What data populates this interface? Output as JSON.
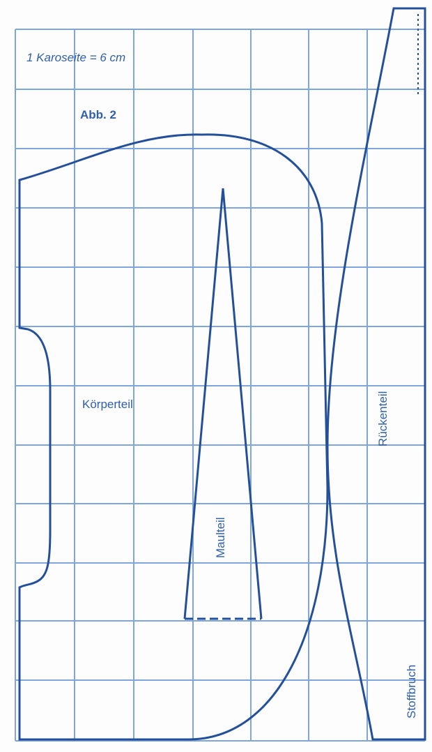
{
  "header": {
    "scale_note": "1 Karoseite = 6 cm",
    "figure_label": "Abb. 2"
  },
  "pieces": [
    {
      "label": "Körperteil"
    },
    {
      "label": "Maulteil"
    },
    {
      "label": "Rückenteil"
    }
  ],
  "fold_label": "Stoffbruch"
}
